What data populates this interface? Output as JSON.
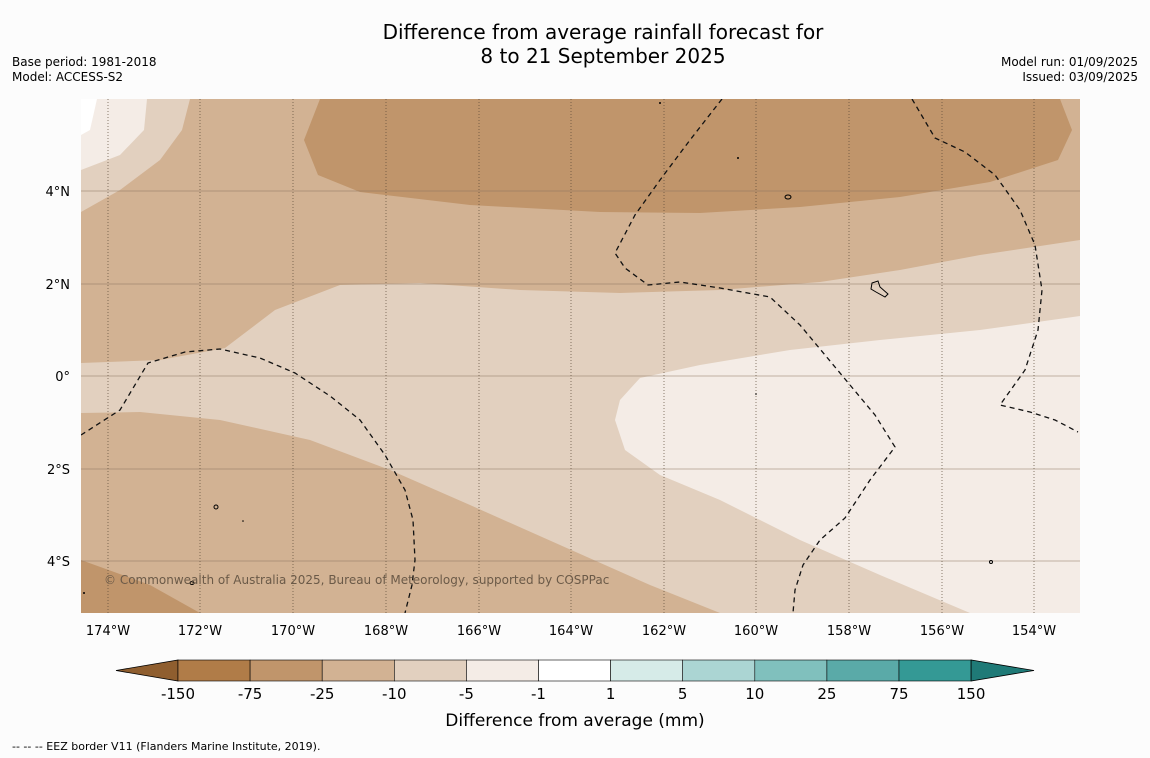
{
  "title_line1": "Difference from average rainfall forecast for",
  "title_line2": "8 to 21 September 2025",
  "base_period": "Base period: 1981-2018",
  "model": "Model: ACCESS-S2",
  "model_run": "Model run: 01/09/2025",
  "issued": "Issued: 03/09/2025",
  "credit": "© Commonwealth of Australia 2025, Bureau of Meteorology, supported by COSPPac",
  "lat_labels": [
    "4°N",
    "2°N",
    "0°",
    "2°S",
    "4°S"
  ],
  "lon_labels": [
    "174°W",
    "172°W",
    "170°W",
    "168°W",
    "166°W",
    "164°W",
    "162°W",
    "160°W",
    "158°W",
    "156°W",
    "154°W"
  ],
  "colorbar": {
    "title": "Difference from average (mm)",
    "ticks": [
      "-150",
      "-75",
      "-25",
      "-10",
      "-5",
      "-1",
      "1",
      "5",
      "10",
      "25",
      "75",
      "150"
    ],
    "colors": [
      "#8f5e2f",
      "#b07c48",
      "#c0956b",
      "#d2b293",
      "#e2d0bf",
      "#f4ece6",
      "#ffffff",
      "#d6ebe8",
      "#abd5d3",
      "#80c0bd",
      "#5aaaa8",
      "#349995",
      "#1f7a77"
    ]
  },
  "footnote": "--  --  -- EEZ border V11 (Flanders Marine Institute, 2019)."
}
